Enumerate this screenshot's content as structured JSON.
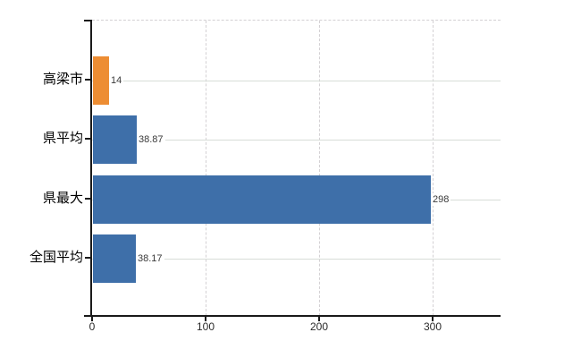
{
  "chart_data": {
    "type": "bar",
    "orientation": "horizontal",
    "title": "",
    "xlabel": "",
    "ylabel": "",
    "categories": [
      "高梁市",
      "県平均",
      "県最大",
      "全国平均"
    ],
    "values": [
      14,
      38.87,
      298,
      38.17
    ],
    "value_labels": [
      "14",
      "38.87",
      "298",
      "38.17"
    ],
    "bar_colors": [
      "#ed8d33",
      "#3e6fa9",
      "#3e6fa9",
      "#3e6fa9"
    ],
    "highlight_color": "#ed8d33",
    "default_color": "#3e6fa9",
    "x_tick_values": [
      0,
      100,
      200,
      300
    ],
    "x_tick_labels": [
      "0",
      "100",
      "200",
      "300"
    ],
    "xlim": [
      0,
      360
    ],
    "grid": {
      "vertical_style": "dashed",
      "horizontal_style": "solid",
      "top_border_style": "dashed"
    },
    "legend": "none",
    "colors": {
      "axis": "#1a1a1a",
      "grid_dashed": "#d4d1d4",
      "grid_solid": "#d8ddd8",
      "value_label": "#3a3a3a",
      "tick_label": "#2a2a2a",
      "category_label": "#000000",
      "background": "#ffffff"
    }
  }
}
